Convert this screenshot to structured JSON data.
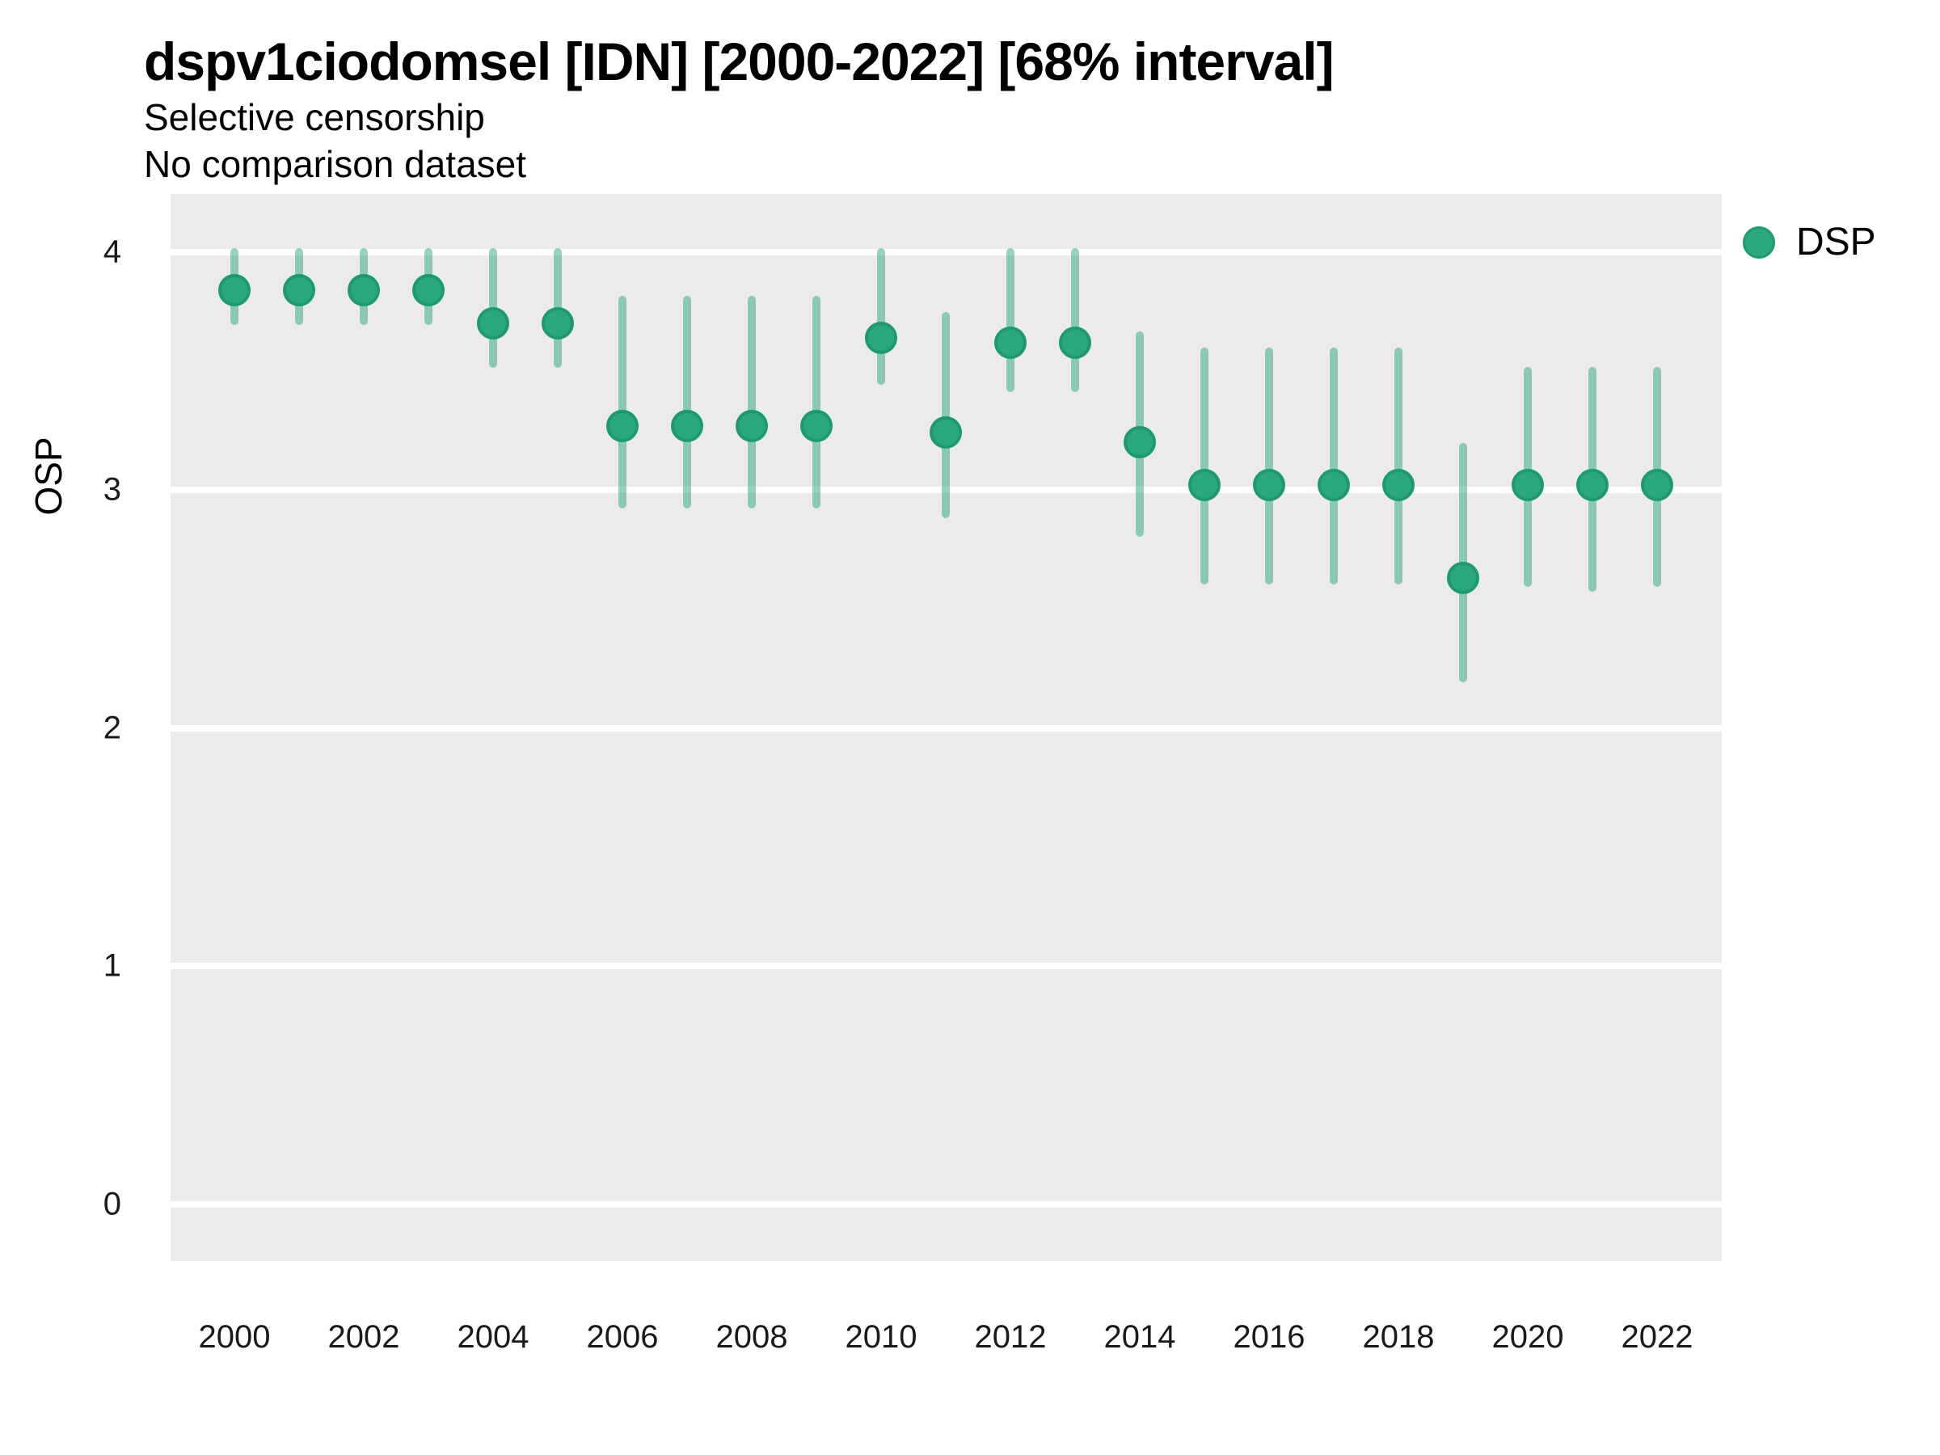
{
  "chart_data": {
    "type": "scatter",
    "title": "dspv1ciodomsel [IDN] [2000-2022] [68% interval]",
    "subtitle": "Selective censorship",
    "note": "No comparison dataset",
    "ylabel": "OSP",
    "xlabel": "",
    "interval": "68% interval",
    "ylim": [
      0,
      4
    ],
    "y_ticks": [
      0,
      1,
      2,
      3,
      4
    ],
    "x_ticks": [
      2000,
      2002,
      2004,
      2006,
      2008,
      2010,
      2012,
      2014,
      2016,
      2018,
      2020,
      2022
    ],
    "grid": "horizontal white major gridlines on gray panel",
    "legend": {
      "position": "right",
      "entries": [
        {
          "label": "DSP",
          "color": "#2BA77D"
        }
      ]
    },
    "series": [
      {
        "name": "DSP",
        "x": [
          2000,
          2001,
          2002,
          2003,
          2004,
          2005,
          2006,
          2007,
          2008,
          2009,
          2010,
          2011,
          2012,
          2013,
          2014,
          2015,
          2016,
          2017,
          2018,
          2019,
          2020,
          2021,
          2022
        ],
        "values": [
          3.84,
          3.84,
          3.84,
          3.84,
          3.7,
          3.7,
          3.27,
          3.27,
          3.27,
          3.27,
          3.64,
          3.24,
          3.62,
          3.62,
          3.2,
          3.02,
          3.02,
          3.02,
          3.02,
          2.63,
          3.02,
          3.02,
          3.02
        ],
        "lower": [
          3.71,
          3.71,
          3.71,
          3.71,
          3.53,
          3.53,
          2.94,
          2.94,
          2.94,
          2.94,
          3.46,
          2.9,
          3.43,
          3.43,
          2.82,
          2.62,
          2.62,
          2.62,
          2.62,
          2.21,
          2.61,
          2.59,
          2.61
        ],
        "upper": [
          4.0,
          4.0,
          4.0,
          4.0,
          4.0,
          4.0,
          3.8,
          3.8,
          3.8,
          3.8,
          4.0,
          3.73,
          4.0,
          4.0,
          3.65,
          3.58,
          3.58,
          3.58,
          3.58,
          3.18,
          3.5,
          3.5,
          3.5
        ]
      }
    ],
    "colors": {
      "point_fill": "#2BA77D",
      "point_edge": "#1F9A6E",
      "errorbar": "rgba(44,167,126,0.5)",
      "panel_bg": "#EBEBEB",
      "gridline": "#FFFFFF",
      "title_text": "#000000",
      "tick_text": "#1A1A1A"
    }
  }
}
